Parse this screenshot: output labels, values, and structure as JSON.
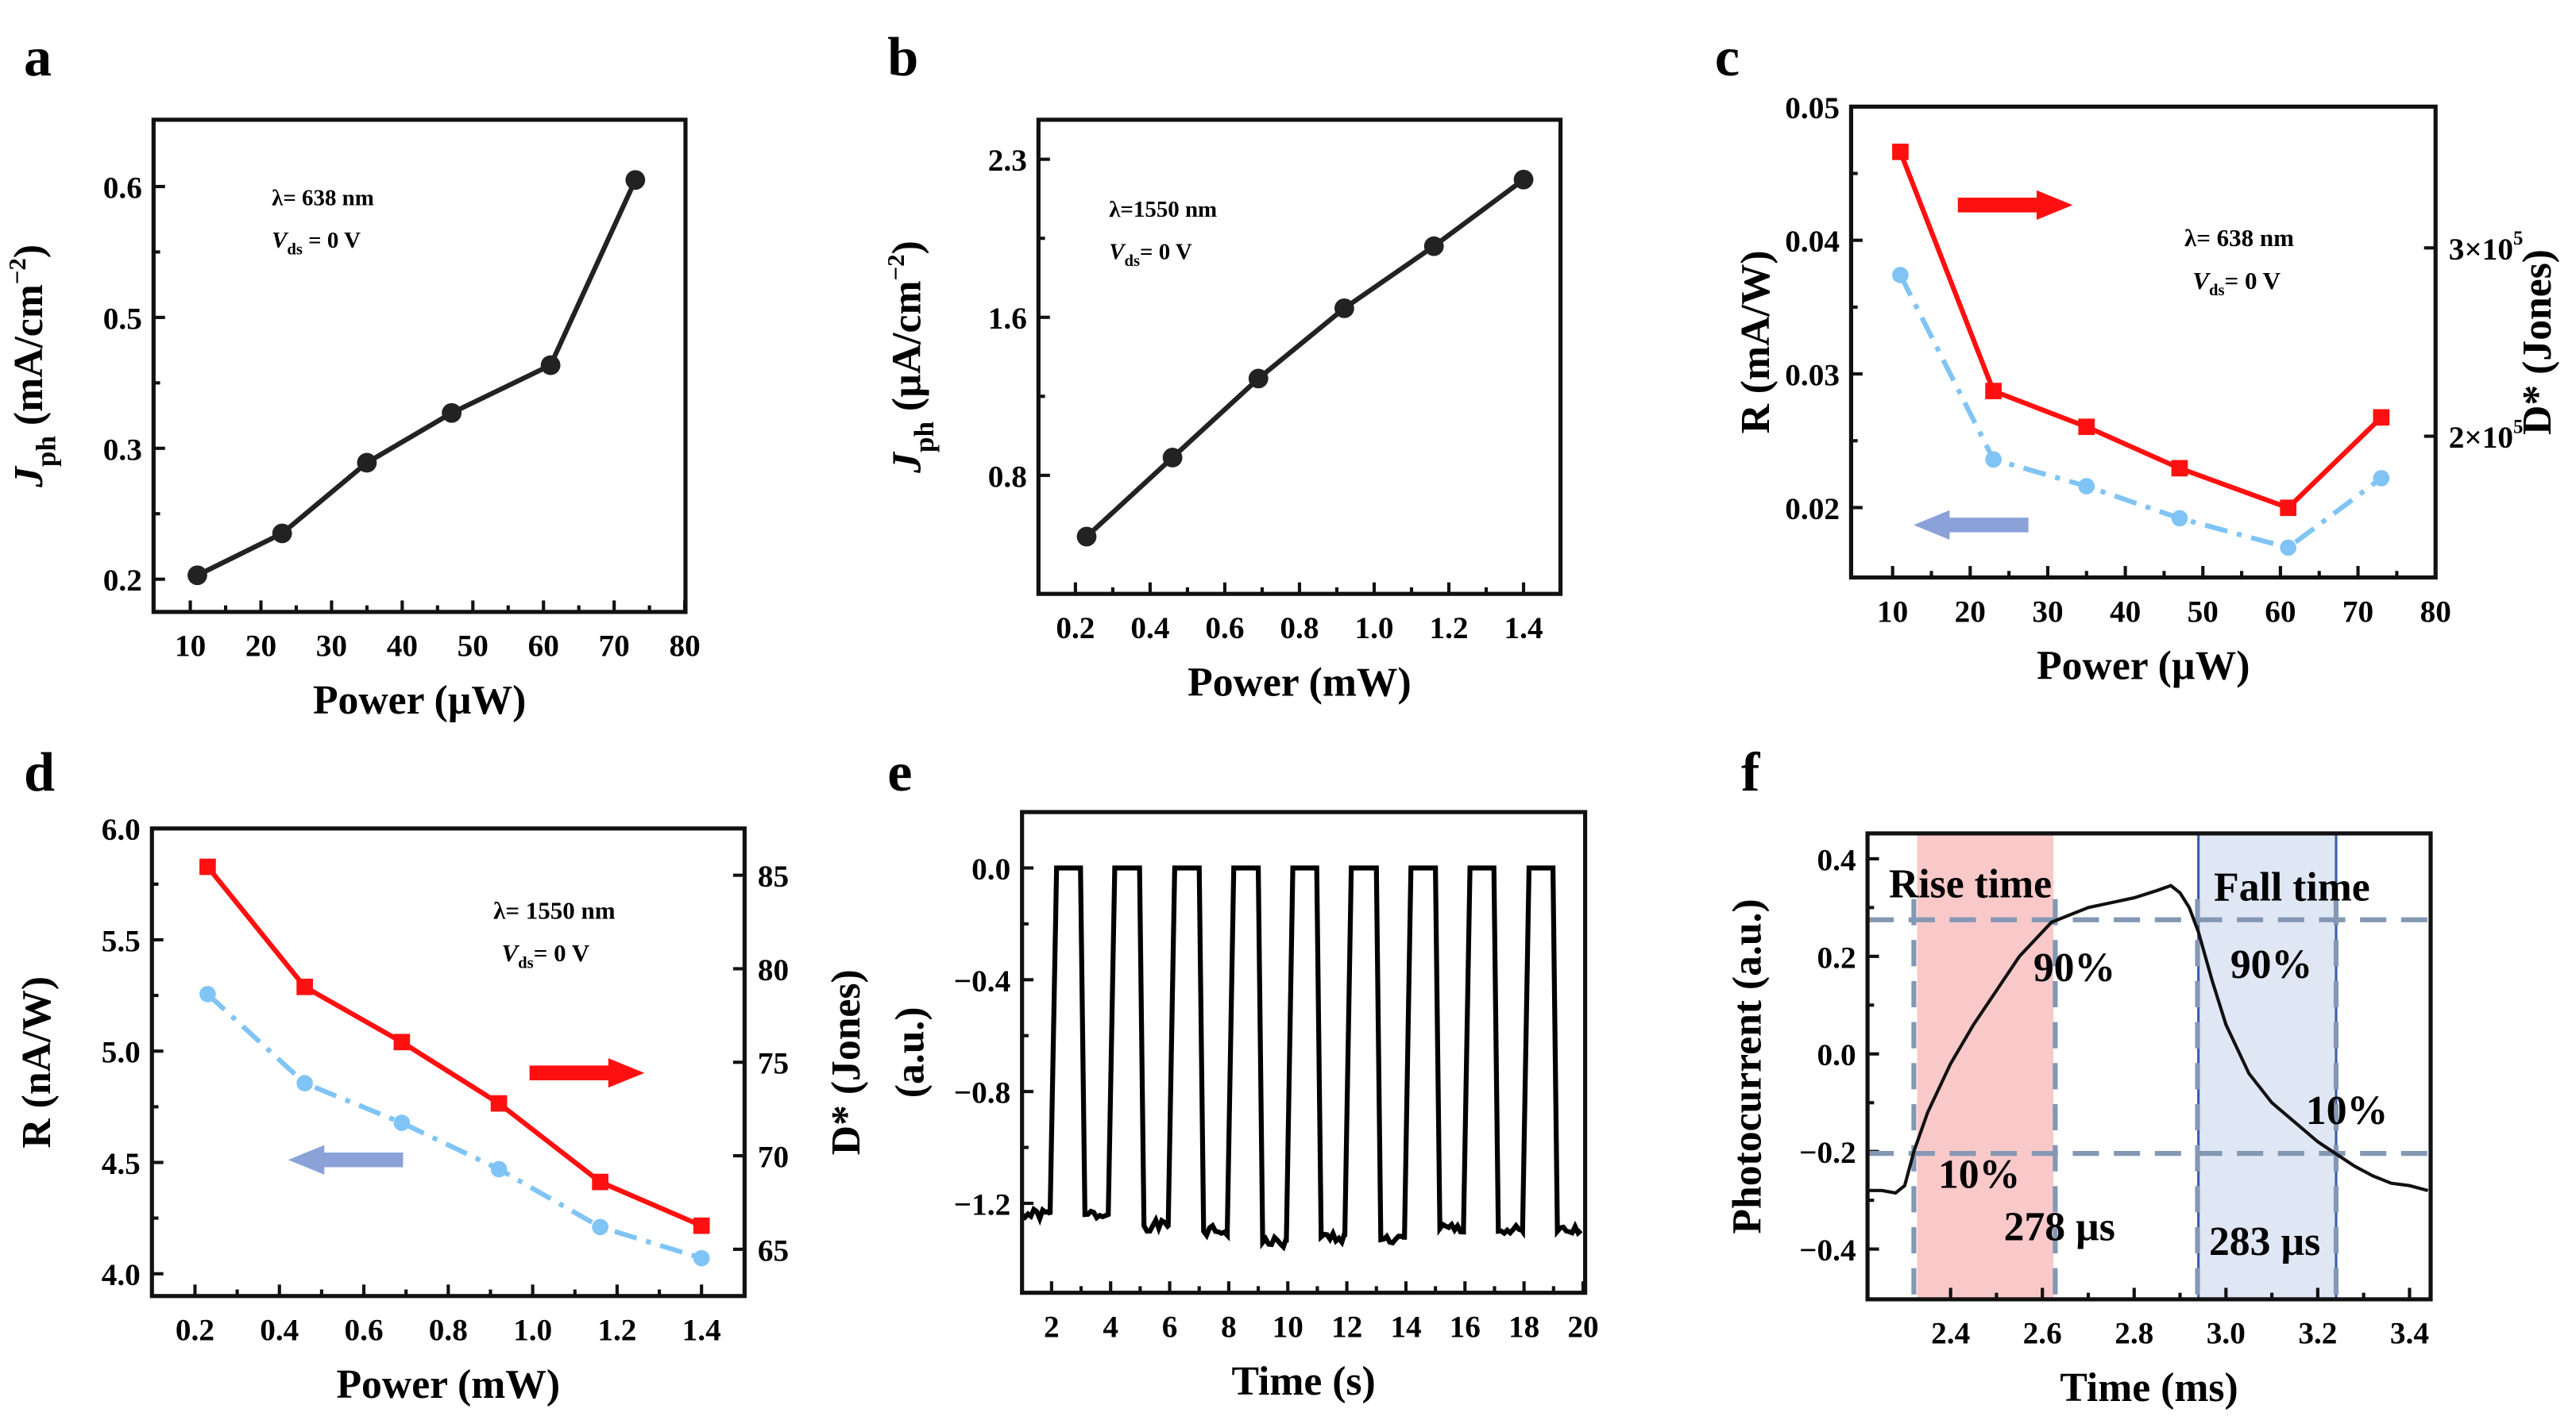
{
  "colors": {
    "black": "#222222",
    "red": "#ff1010",
    "blue": "#80c4f6",
    "arrow_blue": "#8aa2d8",
    "rise_fill": "#f9c9c9",
    "fall_fill": "#dfe6f4",
    "dash": "#8498b4",
    "fall_border": "#3a5ea8"
  },
  "chart_data": [
    {
      "id": "a",
      "panel_label": "a",
      "type": "line",
      "xlabel": "Power (µW)",
      "ylabel": {
        "main": "J",
        "sub": "ph",
        "text": " (mA/cm",
        "sup": "−2",
        "end": ")"
      },
      "xlim": [
        4.8,
        80.1
      ],
      "ylim": [
        0.175,
        0.651
      ],
      "xticks": [
        10,
        20,
        30,
        40,
        50,
        60,
        70,
        80
      ],
      "yticks": [
        0.2,
        0.3,
        0.5,
        0.6
      ],
      "ytick_labels": [
        "0.2",
        "0.3",
        "0.5",
        "0.6"
      ],
      "annotation": {
        "lambda": "λ= 638 nm",
        "vds_v": "V",
        "vds_sub": "ds",
        "vds_rest": " = 0 V"
      },
      "series": [
        {
          "name": "Jph",
          "style": "solid-circle",
          "x": [
            11,
            23,
            35,
            47,
            61,
            73
          ],
          "y": [
            0.203,
            0.235,
            0.289,
            0.354,
            0.427,
            0.605
          ]
        }
      ]
    },
    {
      "id": "b",
      "panel_label": "b",
      "type": "line",
      "xlabel": "Power (mW)",
      "ylabel": {
        "main": "J",
        "sub": "ph",
        "text": " (µA/cm",
        "sup": "−2",
        "end": ")"
      },
      "xlim": [
        0.101,
        1.499
      ],
      "ylim": [
        0.2,
        2.475
      ],
      "xticks": [
        0.2,
        0.4,
        0.6,
        0.8,
        1.0,
        1.2,
        1.4
      ],
      "xtick_labels": [
        "0.2",
        "0.4",
        "0.6",
        "0.8",
        "1.0",
        "1.2",
        "1.4"
      ],
      "yticks": [
        0.8,
        1.6,
        2.3
      ],
      "ytick_labels": [
        "0.8",
        "1.6",
        "2.3"
      ],
      "annotation": {
        "lambda": "λ=1550 nm",
        "vds_v": "V",
        "vds_sub": "ds",
        "vds_rest": "= 0 V"
      },
      "series": [
        {
          "name": "Jph",
          "style": "solid-circle",
          "x": [
            0.23,
            0.46,
            0.69,
            0.92,
            1.16,
            1.4
          ],
          "y": [
            0.49,
            0.89,
            1.29,
            1.64,
            1.915,
            2.21
          ]
        }
      ]
    },
    {
      "id": "c",
      "panel_label": "c",
      "type": "line",
      "xlabel": "Power (µW)",
      "ylabel": {
        "main": "R (mA/W)"
      },
      "y2label": "D* (Jones)",
      "xlim": [
        4.65,
        80
      ],
      "ylim": [
        0.01477,
        0.05
      ],
      "y2lim": [
        125000,
        375000
      ],
      "xticks": [
        10,
        20,
        30,
        40,
        50,
        60,
        70,
        80
      ],
      "yticks": [
        0.02,
        0.03,
        0.04,
        0.05
      ],
      "ytick_labels": [
        "0.02",
        "0.03",
        "0.04",
        "0.05"
      ],
      "y2ticks": [
        200000,
        300000
      ],
      "y2tick_labels": [
        {
          "m": "2×10",
          "e": "5"
        },
        {
          "m": "3×10",
          "e": "5"
        }
      ],
      "annotation": {
        "lambda": "λ= 638 nm",
        "vds_v": "V",
        "vds_sub": "ds",
        "vds_rest": "= 0 V"
      },
      "arrows": [
        {
          "dir": "right",
          "color": "red",
          "axis": "D*"
        },
        {
          "dir": "left",
          "color": "arrow_blue",
          "axis": "R"
        }
      ],
      "series": [
        {
          "name": "R",
          "axis": "left",
          "style": "dashdot-circle",
          "x": [
            11,
            23,
            35,
            47,
            61,
            73
          ],
          "y": [
            0.0374,
            0.0236,
            0.0216,
            0.0192,
            0.017,
            0.0222
          ]
        },
        {
          "name": "D*",
          "axis": "right",
          "style": "solid-square",
          "x": [
            11,
            23,
            35,
            47,
            61,
            73
          ],
          "y": [
            351000,
            224000,
            205000,
            183000,
            162000,
            210000
          ]
        }
      ]
    },
    {
      "id": "d",
      "panel_label": "d",
      "type": "line",
      "xlabel": "Power (mW)",
      "ylabel": {
        "main": "R (nA/W)"
      },
      "y2label": "D* (Jones)",
      "xlim": [
        0.098,
        1.502
      ],
      "ylim": [
        3.9,
        6.0
      ],
      "y2lim": [
        62.5,
        87.5
      ],
      "xticks": [
        0.2,
        0.4,
        0.6,
        0.8,
        1.0,
        1.2,
        1.4
      ],
      "xtick_labels": [
        "0.2",
        "0.4",
        "0.6",
        "0.8",
        "1.0",
        "1.2",
        "1.4"
      ],
      "yticks": [
        4.0,
        4.5,
        5.0,
        5.5,
        6.0
      ],
      "ytick_labels": [
        "4.0",
        "4.5",
        "5.0",
        "5.5",
        "6.0"
      ],
      "y2ticks": [
        65,
        70,
        75,
        80,
        85
      ],
      "y2tick_labels": [
        {
          "m": "65"
        },
        {
          "m": "70"
        },
        {
          "m": "75"
        },
        {
          "m": "80"
        },
        {
          "m": "85"
        }
      ],
      "annotation": {
        "lambda": "λ= 1550 nm",
        "vds_v": "V",
        "vds_sub": "ds",
        "vds_rest": "= 0 V"
      },
      "arrows": [
        {
          "dir": "right",
          "color": "red",
          "axis": "D*"
        },
        {
          "dir": "left",
          "color": "arrow_blue",
          "axis": "R"
        }
      ],
      "series": [
        {
          "name": "R",
          "axis": "left",
          "style": "dashdot-circle",
          "x": [
            0.23,
            0.46,
            0.69,
            0.92,
            1.16,
            1.4
          ],
          "y": [
            5.256,
            4.856,
            4.678,
            4.47,
            4.21,
            4.07
          ]
        },
        {
          "name": "D*",
          "axis": "right",
          "style": "solid-square",
          "x": [
            0.23,
            0.46,
            0.69,
            0.92,
            1.16,
            1.4
          ],
          "y": [
            85.45,
            79.03,
            76.08,
            72.8,
            68.6,
            66.26
          ]
        }
      ]
    },
    {
      "id": "e",
      "panel_label": "e",
      "type": "line",
      "xlabel": "Time (s)",
      "ylabel": {
        "main": "(a.u.)"
      },
      "xlim": [
        1.0,
        20.07
      ],
      "ylim": [
        -1.52,
        0.2
      ],
      "xticks": [
        2,
        4,
        6,
        8,
        10,
        12,
        14,
        16,
        18,
        20
      ],
      "yticks": [
        -1.2,
        -0.8,
        -0.4,
        0.0
      ],
      "ytick_labels": [
        "−1.2",
        "−0.8",
        "−0.4",
        "0.0"
      ],
      "series": [
        {
          "name": "photoresponse",
          "style": "square-wave",
          "on_level": 0.0,
          "initial_low": -1.24,
          "rise_start": [
            1.95,
            3.92,
            5.95,
            7.95,
            9.95,
            11.93,
            13.95,
            15.95,
            17.95
          ],
          "fall_start": [
            2.98,
            4.98,
            7.0,
            9.0,
            10.98,
            13.0,
            15.0,
            16.98,
            18.98
          ],
          "low_levels": [
            -1.24,
            -1.28,
            -1.3,
            -1.34,
            -1.32,
            -1.33,
            -1.29,
            -1.3,
            -1.3
          ]
        }
      ]
    },
    {
      "id": "f",
      "panel_label": "f",
      "type": "line",
      "xlabel": "Time (ms)",
      "ylabel": {
        "main": "Photocurrent (a.u.)"
      },
      "xlim": [
        2.219,
        3.446
      ],
      "ylim": [
        -0.503,
        0.452
      ],
      "xticks": [
        2.4,
        2.6,
        2.8,
        3.0,
        3.2,
        3.4
      ],
      "xtick_labels": [
        "2.4",
        "2.6",
        "2.8",
        "3.0",
        "3.2",
        "3.4"
      ],
      "yticks": [
        -0.4,
        -0.2,
        0.0,
        0.2,
        0.4
      ],
      "ytick_labels": [
        "−0.4",
        "−0.2",
        "0.0",
        "0.2",
        "0.4"
      ],
      "regions": [
        {
          "name": "rise",
          "x": [
            2.327,
            2.624
          ],
          "fill": "rise_fill",
          "label": "Rise time",
          "pct_high": "90%",
          "pct_low": "10%",
          "duration": "278 µs"
        },
        {
          "name": "fall",
          "x": [
            2.94,
            3.24
          ],
          "fill": "fall_fill",
          "label": "Fall time",
          "pct_high": "90%",
          "pct_low": "10%",
          "duration": "283 µs"
        }
      ],
      "hlines": [
        0.275,
        -0.204
      ],
      "vlines": [
        2.32,
        2.628,
        2.938,
        3.24
      ],
      "series": [
        {
          "name": "photocurrent",
          "style": "solid",
          "x": [
            2.22,
            2.25,
            2.28,
            2.3,
            2.32,
            2.35,
            2.4,
            2.45,
            2.5,
            2.55,
            2.6,
            2.62,
            2.66,
            2.7,
            2.75,
            2.8,
            2.85,
            2.88,
            2.9,
            2.92,
            2.94,
            2.97,
            3.0,
            3.05,
            3.1,
            3.15,
            3.2,
            3.24,
            3.28,
            3.32,
            3.36,
            3.4,
            3.44
          ],
          "y": [
            -0.28,
            -0.28,
            -0.285,
            -0.27,
            -0.2,
            -0.12,
            -0.02,
            0.06,
            0.13,
            0.2,
            0.25,
            0.27,
            0.285,
            0.3,
            0.31,
            0.32,
            0.335,
            0.345,
            0.33,
            0.3,
            0.25,
            0.15,
            0.06,
            -0.04,
            -0.1,
            -0.14,
            -0.18,
            -0.205,
            -0.23,
            -0.25,
            -0.265,
            -0.27,
            -0.28
          ]
        }
      ]
    }
  ]
}
